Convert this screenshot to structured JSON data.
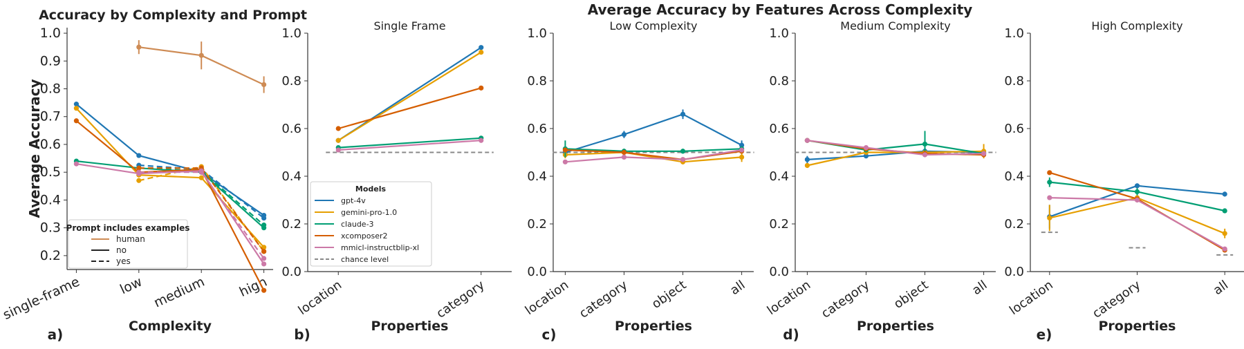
{
  "figure": {
    "left_title": "Accuracy by Complexity and Prompt",
    "suptitle": "Average Accuracy by Features Across Complexity",
    "panel_labels": [
      "a)",
      "b)",
      "c)",
      "d)",
      "e)"
    ]
  },
  "colors": {
    "gpt-4v": "#1f77b4",
    "gemini-pro-1.0": "#e69f00",
    "claude-3": "#009e73",
    "xcomposer2": "#d55e00",
    "mmicl-instructblip-xl": "#cc79a7",
    "human": "#ce8b54",
    "chance": "#888888",
    "axis": "#333333",
    "text": "#222222"
  },
  "chart_data": [
    {
      "id": "a",
      "type": "line",
      "title": "Accuracy by Complexity and Prompt",
      "xlabel": "Complexity",
      "ylabel": "Average Accuracy",
      "categories": [
        "single-frame",
        "low",
        "medium",
        "high"
      ],
      "ylim": [
        0.15,
        1.02
      ],
      "yticks": [
        0.2,
        0.3,
        0.4,
        0.5,
        0.6,
        0.7,
        0.8,
        0.9,
        1.0
      ],
      "grid": false,
      "legend": {
        "title": "Prompt includes examples",
        "entries": [
          {
            "label": "human",
            "style": "human"
          },
          {
            "label": "no",
            "style": "solid"
          },
          {
            "label": "yes",
            "style": "dashed"
          }
        ],
        "placement": "lower-left"
      },
      "series": [
        {
          "name": "human",
          "model": "human",
          "dashed": false,
          "values": [
            null,
            0.95,
            0.92,
            0.815
          ],
          "err": [
            null,
            0.025,
            0.05,
            0.03
          ]
        },
        {
          "model": "gpt-4v",
          "dashed": false,
          "values": [
            0.745,
            0.56,
            0.5,
            0.345
          ]
        },
        {
          "model": "gpt-4v",
          "dashed": true,
          "values": [
            null,
            0.525,
            0.51,
            0.335
          ]
        },
        {
          "model": "gemini-pro-1.0",
          "dashed": false,
          "values": [
            0.73,
            0.49,
            0.48,
            0.23
          ]
        },
        {
          "model": "gemini-pro-1.0",
          "dashed": true,
          "values": [
            null,
            0.47,
            0.52,
            0.215
          ]
        },
        {
          "model": "claude-3",
          "dashed": false,
          "values": [
            0.54,
            0.515,
            0.5,
            0.3
          ]
        },
        {
          "model": "claude-3",
          "dashed": true,
          "values": [
            null,
            0.515,
            0.505,
            0.31
          ]
        },
        {
          "model": "xcomposer2",
          "dashed": false,
          "values": [
            0.685,
            0.5,
            0.51,
            0.075
          ]
        },
        {
          "model": "xcomposer2",
          "dashed": true,
          "values": [
            null,
            0.515,
            0.515,
            0.215
          ]
        },
        {
          "model": "mmicl-instructblip-xl",
          "dashed": false,
          "values": [
            0.53,
            0.495,
            0.505,
            0.17
          ]
        },
        {
          "model": "mmicl-instructblip-xl",
          "dashed": true,
          "values": [
            null,
            0.5,
            0.5,
            0.19
          ]
        }
      ]
    },
    {
      "id": "b",
      "type": "line",
      "title": "Single Frame",
      "xlabel": "Properties",
      "ylabel": "",
      "categories": [
        "location",
        "category"
      ],
      "ylim": [
        0.0,
        1.0
      ],
      "yticks": [
        0.0,
        0.2,
        0.4,
        0.6,
        0.8,
        1.0
      ],
      "grid": false,
      "chance": [
        {
          "from": "location",
          "to": "category",
          "value": 0.5
        }
      ],
      "legend": {
        "title": "Models",
        "entries": [
          "gpt-4v",
          "gemini-pro-1.0",
          "claude-3",
          "xcomposer2",
          "mmicl-instructblip-xl",
          "chance level"
        ],
        "placement": "lower-left"
      },
      "series": [
        {
          "name": "gpt-4v",
          "values": [
            0.55,
            0.94
          ]
        },
        {
          "name": "gemini-pro-1.0",
          "values": [
            0.55,
            0.92
          ]
        },
        {
          "name": "claude-3",
          "values": [
            0.52,
            0.56
          ]
        },
        {
          "name": "xcomposer2",
          "values": [
            0.6,
            0.77
          ]
        },
        {
          "name": "mmicl-instructblip-xl",
          "values": [
            0.51,
            0.55
          ]
        }
      ]
    },
    {
      "id": "c",
      "type": "line",
      "title": "Low Complexity",
      "xlabel": "Properties",
      "ylabel": "",
      "categories": [
        "location",
        "category",
        "object",
        "all"
      ],
      "ylim": [
        0.0,
        1.0
      ],
      "yticks": [
        0.0,
        0.2,
        0.4,
        0.6,
        0.8,
        1.0
      ],
      "grid": false,
      "chance": [
        {
          "from": "location",
          "to": "all",
          "value": 0.5
        }
      ],
      "series": [
        {
          "name": "gpt-4v",
          "values": [
            0.5,
            0.575,
            0.66,
            0.53
          ],
          "err": [
            0.01,
            0.015,
            0.02,
            0.02
          ]
        },
        {
          "name": "gemini-pro-1.0",
          "values": [
            0.49,
            0.5,
            0.46,
            0.48
          ],
          "err": [
            0.015,
            0.015,
            0.01,
            0.02
          ]
        },
        {
          "name": "claude-3",
          "values": [
            0.515,
            0.505,
            0.505,
            0.515
          ],
          "err": [
            0.035,
            0.01,
            0.01,
            0.01
          ]
        },
        {
          "name": "xcomposer2",
          "values": [
            0.51,
            0.5,
            0.47,
            0.505
          ]
        },
        {
          "name": "mmicl-instructblip-xl",
          "values": [
            0.46,
            0.48,
            0.47,
            0.51
          ]
        }
      ]
    },
    {
      "id": "d",
      "type": "line",
      "title": "Medium Complexity",
      "xlabel": "Properties",
      "ylabel": "",
      "categories": [
        "location",
        "category",
        "object",
        "all"
      ],
      "ylim": [
        0.0,
        1.0
      ],
      "yticks": [
        0.0,
        0.2,
        0.4,
        0.6,
        0.8,
        1.0
      ],
      "grid": false,
      "chance": [
        {
          "from": "location",
          "to": "all",
          "value": 0.5
        }
      ],
      "series": [
        {
          "name": "gpt-4v",
          "values": [
            0.47,
            0.485,
            0.505,
            0.5
          ],
          "err": [
            0.015,
            0.01,
            0.015,
            0.01
          ]
        },
        {
          "name": "gemini-pro-1.0",
          "values": [
            0.445,
            0.5,
            0.5,
            0.505
          ],
          "err": [
            0.01,
            0.01,
            0.01,
            0.03
          ]
        },
        {
          "name": "claude-3",
          "values": [
            0.55,
            0.51,
            0.535,
            0.495
          ],
          "err": [
            0.01,
            0.01,
            0.055,
            0.01
          ]
        },
        {
          "name": "xcomposer2",
          "values": [
            0.55,
            0.515,
            0.495,
            0.49
          ]
        },
        {
          "name": "mmicl-instructblip-xl",
          "values": [
            0.55,
            0.52,
            0.49,
            0.495
          ]
        }
      ]
    },
    {
      "id": "e",
      "type": "line",
      "title": "High Complexity",
      "xlabel": "Properties",
      "ylabel": "",
      "categories": [
        "location",
        "category",
        "all"
      ],
      "ylim": [
        0.0,
        1.0
      ],
      "yticks": [
        0.0,
        0.2,
        0.4,
        0.6,
        0.8,
        1.0
      ],
      "grid": false,
      "chance": [
        {
          "from": "location",
          "to": "location",
          "value": 0.165
        },
        {
          "from": "category",
          "to": "category",
          "value": 0.1
        },
        {
          "from": "all",
          "to": "all",
          "value": 0.07
        }
      ],
      "series": [
        {
          "name": "gpt-4v",
          "values": [
            0.23,
            0.36,
            0.325
          ],
          "err": [
            0.05,
            0.01,
            0.01
          ]
        },
        {
          "name": "gemini-pro-1.0",
          "values": [
            0.225,
            0.31,
            0.16
          ],
          "err": [
            0.055,
            0.01,
            0.02
          ]
        },
        {
          "name": "claude-3",
          "values": [
            0.375,
            0.335,
            0.255
          ],
          "err": [
            0.02,
            0.015,
            0.01
          ]
        },
        {
          "name": "xcomposer2",
          "values": [
            0.415,
            0.305,
            0.09
          ]
        },
        {
          "name": "mmicl-instructblip-xl",
          "values": [
            0.31,
            0.3,
            0.095
          ]
        }
      ]
    }
  ]
}
